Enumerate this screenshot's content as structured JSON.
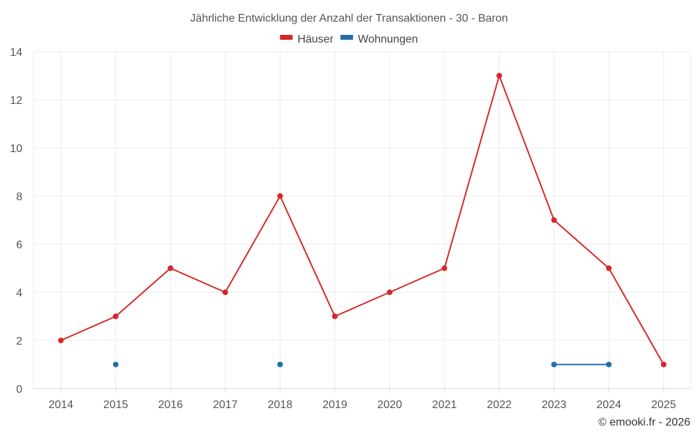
{
  "chart_data": {
    "type": "line",
    "title": "Jährliche Entwicklung der Anzahl der Transaktionen - 30 - Baron",
    "x": [
      "2014",
      "2015",
      "2016",
      "2017",
      "2018",
      "2019",
      "2020",
      "2021",
      "2022",
      "2023",
      "2024",
      "2025"
    ],
    "ylim": [
      0,
      14
    ],
    "yticks": [
      0,
      2,
      4,
      6,
      8,
      10,
      12,
      14
    ],
    "grid": true,
    "legend_position": "top-center",
    "series": [
      {
        "name": "Häuser",
        "color": "#d62728",
        "values": [
          2,
          3,
          5,
          4,
          8,
          3,
          4,
          5,
          13,
          7,
          5,
          1
        ]
      },
      {
        "name": "Wohnungen",
        "color": "#1f6fa8",
        "values": [
          null,
          1,
          null,
          null,
          1,
          null,
          null,
          null,
          null,
          1,
          1,
          null
        ]
      }
    ]
  },
  "footer": {
    "credit": "© emooki.fr - 2026"
  }
}
